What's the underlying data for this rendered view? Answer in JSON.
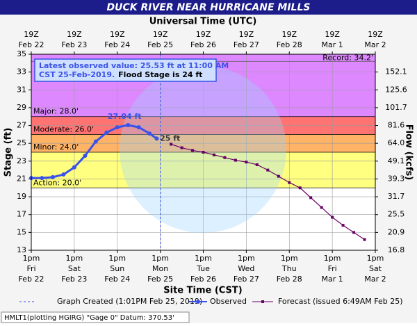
{
  "chart_data": {
    "type": "line",
    "title": "DUCK RIVER NEAR HURRICANE MILLS",
    "x2_title": "Universal Time (UTC)",
    "xlabel": "Site Time (CST)",
    "ylabel": "Stage (ft)",
    "y2label": "Flow (kcfs)",
    "xlim": [
      "2019-02-22T13:00",
      "2019-03-02T13:00"
    ],
    "xticks": [
      "2019-02-22T13:00",
      "2019-02-23T13:00",
      "2019-02-24T13:00",
      "2019-02-25T13:00",
      "2019-02-26T13:00",
      "2019-02-27T13:00",
      "2019-02-28T13:00",
      "2019-03-01T13:00",
      "2019-03-02T13:00"
    ],
    "xtick_labels": [
      [
        "1pm",
        "Fri",
        "Feb 22"
      ],
      [
        "1pm",
        "Sat",
        "Feb 23"
      ],
      [
        "1pm",
        "Sun",
        "Feb 24"
      ],
      [
        "1pm",
        "Mon",
        "Feb 25"
      ],
      [
        "1pm",
        "Tue",
        "Feb 26"
      ],
      [
        "1pm",
        "Wed",
        "Feb 27"
      ],
      [
        "1pm",
        "Thu",
        "Feb 28"
      ],
      [
        "1pm",
        "Fri",
        "Mar 1"
      ],
      [
        "1pm",
        "Sat",
        "Mar 2"
      ]
    ],
    "x2tick_labels": [
      [
        "19Z",
        "Feb 22"
      ],
      [
        "19Z",
        "Feb 23"
      ],
      [
        "19Z",
        "Feb 24"
      ],
      [
        "19Z",
        "Feb 25"
      ],
      [
        "19Z",
        "Feb 26"
      ],
      [
        "19Z",
        "Feb 27"
      ],
      [
        "19Z",
        "Feb 28"
      ],
      [
        "19Z",
        "Mar 1"
      ],
      [
        "19Z",
        "Mar 2"
      ]
    ],
    "ylim": [
      13,
      35
    ],
    "yticks": [
      13,
      15,
      17,
      19,
      21,
      23,
      25,
      27,
      29,
      31,
      33,
      35
    ],
    "y2ticks": [
      16.8,
      20.9,
      25.5,
      31.7,
      39.3,
      49.1,
      {
        "value": 64,
        "label": "64.0"
      },
      81.6,
      101.7,
      125.6,
      152.1
    ],
    "y2tick_stages": [
      13,
      15,
      17,
      19,
      21,
      23,
      25,
      27,
      29,
      31,
      33
    ],
    "grid": true,
    "flood_categories": [
      {
        "name": "Action: 20.0'",
        "stage": 20,
        "color": "#ffff80"
      },
      {
        "name": "Minor: 24.0'",
        "stage": 24,
        "color": "#ffb366"
      },
      {
        "name": "Moderate: 26.0'",
        "stage": 26,
        "color": "#ff7373"
      },
      {
        "name": "Major: 28.0'",
        "stage": 28,
        "color": "#dd88ff"
      }
    ],
    "record": {
      "name": "Record: 34.2'",
      "stage": 34.2
    },
    "series": [
      {
        "name": "Observed",
        "color": "#3a52e8",
        "x": [
          "2019-02-22T13:00",
          "2019-02-22T19:00",
          "2019-02-23T01:00",
          "2019-02-23T07:00",
          "2019-02-23T13:00",
          "2019-02-23T19:00",
          "2019-02-24T01:00",
          "2019-02-24T07:00",
          "2019-02-24T13:00",
          "2019-02-24T19:00",
          "2019-02-25T01:00",
          "2019-02-25T07:00",
          "2019-02-25T11:00"
        ],
        "values": [
          21.1,
          21.1,
          21.2,
          21.5,
          22.3,
          23.6,
          25.2,
          26.2,
          26.8,
          27.04,
          26.8,
          26.1,
          25.53
        ]
      },
      {
        "name": "Forecast (issued 6:49AM Feb 25)",
        "color": "#660066",
        "x": [
          "2019-02-25T19:00",
          "2019-02-26T01:00",
          "2019-02-26T07:00",
          "2019-02-26T13:00",
          "2019-02-26T19:00",
          "2019-02-27T01:00",
          "2019-02-27T07:00",
          "2019-02-27T13:00",
          "2019-02-27T19:00",
          "2019-02-28T01:00",
          "2019-02-28T07:00",
          "2019-02-28T13:00",
          "2019-02-28T19:00",
          "2019-03-01T01:00",
          "2019-03-01T07:00",
          "2019-03-01T13:00",
          "2019-03-01T19:00",
          "2019-03-02T01:00",
          "2019-03-02T07:00"
        ],
        "values": [
          24.9,
          24.5,
          24.2,
          24.0,
          23.7,
          23.4,
          23.1,
          22.9,
          22.6,
          22.0,
          21.3,
          20.6,
          20.0,
          18.9,
          17.8,
          16.7,
          15.8,
          15.0,
          14.2
        ]
      }
    ],
    "graph_created": {
      "name": "Graph Created (1:01PM Feb 25, 2019)",
      "x": "2019-02-25T13:01"
    },
    "peak_label": "27.04 ft",
    "forecast_label": "25 ft",
    "latest_line1": "Latest observed value: 25.53 ft at 11:00 AM",
    "latest_line2": "CST 25-Feb-2019.",
    "flood_stage": "Flood Stage is 24 ft",
    "footer": "HMLT1(plotting HGIRG) \"Gage 0\" Datum: 370.53'"
  }
}
